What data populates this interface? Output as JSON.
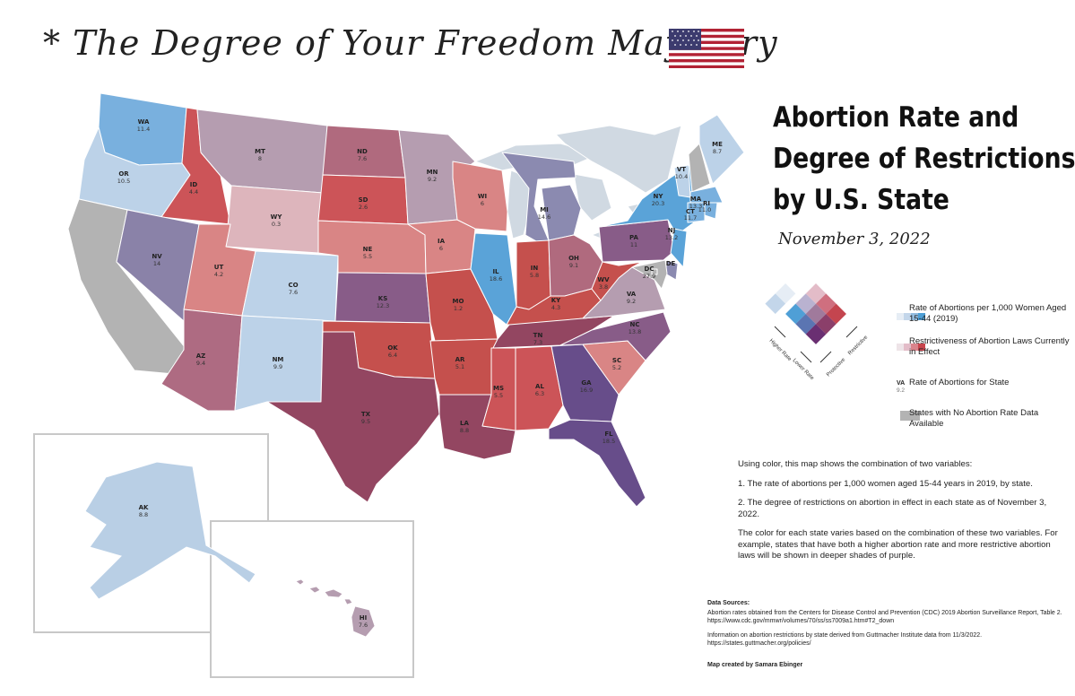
{
  "slogan": "* The Degree of Your Freedom May Vary",
  "title_lines": [
    "Abortion Rate and",
    "Degree of Restrictions",
    "by U.S. State"
  ],
  "date": "November 3, 2022",
  "legend": {
    "rate_label": "Rate of Abortions per 1,000 Women Aged 15-44 (2019)",
    "restrict_label": "Restrictiveness of Abortion Laws Currently in Effect",
    "sample_abbr": "VA",
    "sample_rate": "9.2",
    "sample_label": "Rate of Abortions for State",
    "nodata_label": "States with No Abortion Rate Data Available",
    "axis_higher_rate": "Higher Rate",
    "axis_lower_rate": "Lower Rate",
    "axis_protective": "Protective",
    "axis_restrictive": "Restrictive",
    "rate_ramp": [
      "#e6edf5",
      "#c3d6ea",
      "#94bde0",
      "#4e9fd6"
    ],
    "restrict_ramp": [
      "#eee4e8",
      "#e3bcc8",
      "#d9848c",
      "#c8454d"
    ]
  },
  "description": [
    "Using color, this map shows the combination of two variables:",
    "1. The rate of abortions per 1,000 women aged 15-44 years in 2019, by state.",
    "2. The degree of restrictions on abortion in effect in each state as of November 3, 2022.",
    "The color for each state varies based on the combination of these two variables. For example, states that have both a higher abortion rate and more restrictive abortion laws will be shown in deeper shades of purple."
  ],
  "sources": {
    "heading": "Data Sources:",
    "line1": "Abortion rates obtained from the Centers for Disease Control and Prevention (CDC) 2019 Abortion Surveillance Report, Table 2.",
    "url1": "https://www.cdc.gov/mmwr/volumes/70/ss/ss7009a1.htm#T2_down",
    "line2": "Information on abortion restrictions by state derived from Guttmacher Institute data from 11/3/2022.",
    "url2": "https://states.guttmacher.org/policies/",
    "credit": "Map created by Samara Ebinger"
  },
  "states": [
    {
      "abbr": "WA",
      "rate": "11.4",
      "color": "#79b0de"
    },
    {
      "abbr": "OR",
      "rate": "10.5",
      "color": "#bcd2e8"
    },
    {
      "abbr": "CA",
      "rate": "",
      "color": "#b3b3b3"
    },
    {
      "abbr": "ID",
      "rate": "4.4",
      "color": "#cc5458"
    },
    {
      "abbr": "NV",
      "rate": "14",
      "color": "#8a82a8"
    },
    {
      "abbr": "MT",
      "rate": "8",
      "color": "#b59db0"
    },
    {
      "abbr": "WY",
      "rate": "0.3",
      "color": "#ddb5bc"
    },
    {
      "abbr": "UT",
      "rate": "4.2",
      "color": "#d98585"
    },
    {
      "abbr": "AZ",
      "rate": "9.4",
      "color": "#ae6b82"
    },
    {
      "abbr": "CO",
      "rate": "7.6",
      "color": "#bcd2e8"
    },
    {
      "abbr": "NM",
      "rate": "9.9",
      "color": "#bcd2e8"
    },
    {
      "abbr": "ND",
      "rate": "7.6",
      "color": "#b06a7e"
    },
    {
      "abbr": "SD",
      "rate": "2.6",
      "color": "#cc5458"
    },
    {
      "abbr": "NE",
      "rate": "5.5",
      "color": "#d98585"
    },
    {
      "abbr": "KS",
      "rate": "12.3",
      "color": "#885c88"
    },
    {
      "abbr": "OK",
      "rate": "6.4",
      "color": "#c5504d"
    },
    {
      "abbr": "TX",
      "rate": "9.5",
      "color": "#934661"
    },
    {
      "abbr": "MN",
      "rate": "9.2",
      "color": "#b59db0"
    },
    {
      "abbr": "IA",
      "rate": "6",
      "color": "#d98585"
    },
    {
      "abbr": "MO",
      "rate": "1.2",
      "color": "#c5504d"
    },
    {
      "abbr": "AR",
      "rate": "5.1",
      "color": "#c5504d"
    },
    {
      "abbr": "LA",
      "rate": "8.8",
      "color": "#934661"
    },
    {
      "abbr": "WI",
      "rate": "6",
      "color": "#d98585"
    },
    {
      "abbr": "IL",
      "rate": "18.6",
      "color": "#5aa3d8"
    },
    {
      "abbr": "MI",
      "rate": "14.6",
      "color": "#8b8ab0"
    },
    {
      "abbr": "IN",
      "rate": "5.8",
      "color": "#c5504d"
    },
    {
      "abbr": "OH",
      "rate": "9.1",
      "color": "#b06a7e"
    },
    {
      "abbr": "KY",
      "rate": "4.3",
      "color": "#c5504d"
    },
    {
      "abbr": "TN",
      "rate": "7.3",
      "color": "#934661"
    },
    {
      "abbr": "MS",
      "rate": "5.5",
      "color": "#cc5458"
    },
    {
      "abbr": "AL",
      "rate": "6.3",
      "color": "#cc5458"
    },
    {
      "abbr": "GA",
      "rate": "16.9",
      "color": "#674d8a"
    },
    {
      "abbr": "FL",
      "rate": "18.5",
      "color": "#674d8a"
    },
    {
      "abbr": "SC",
      "rate": "5.2",
      "color": "#d98585"
    },
    {
      "abbr": "NC",
      "rate": "13.8",
      "color": "#885c88"
    },
    {
      "abbr": "VA",
      "rate": "9.2",
      "color": "#b59db0"
    },
    {
      "abbr": "WV",
      "rate": "3.8",
      "color": "#c5504d"
    },
    {
      "abbr": "PA",
      "rate": "11",
      "color": "#885c88"
    },
    {
      "abbr": "NY",
      "rate": "20.3",
      "color": "#5aa3d8"
    },
    {
      "abbr": "VT",
      "rate": "10.4",
      "color": "#bcd2e8"
    },
    {
      "abbr": "NH",
      "rate": "",
      "color": "#b3b3b3"
    },
    {
      "abbr": "ME",
      "rate": "8.7",
      "color": "#bcd2e8"
    },
    {
      "abbr": "MA",
      "rate": "13.3",
      "color": "#79b0de"
    },
    {
      "abbr": "RI",
      "rate": "11.0",
      "color": "#79b0de"
    },
    {
      "abbr": "CT",
      "rate": "11.7",
      "color": "#79b0de"
    },
    {
      "abbr": "NJ",
      "rate": "13.2",
      "color": "#5aa3d8"
    },
    {
      "abbr": "DE",
      "rate": "",
      "color": "#8b8ab0"
    },
    {
      "abbr": "MD",
      "rate": "",
      "color": "#b3b3b3"
    },
    {
      "abbr": "DC",
      "rate": "27.9",
      "color": "#b3b3b3"
    },
    {
      "abbr": "AK",
      "rate": "8.8",
      "color": "#b9cfe5"
    },
    {
      "abbr": "HI",
      "rate": "7.6",
      "color": "#b59db0"
    }
  ],
  "water_color": "#d0d9e2"
}
